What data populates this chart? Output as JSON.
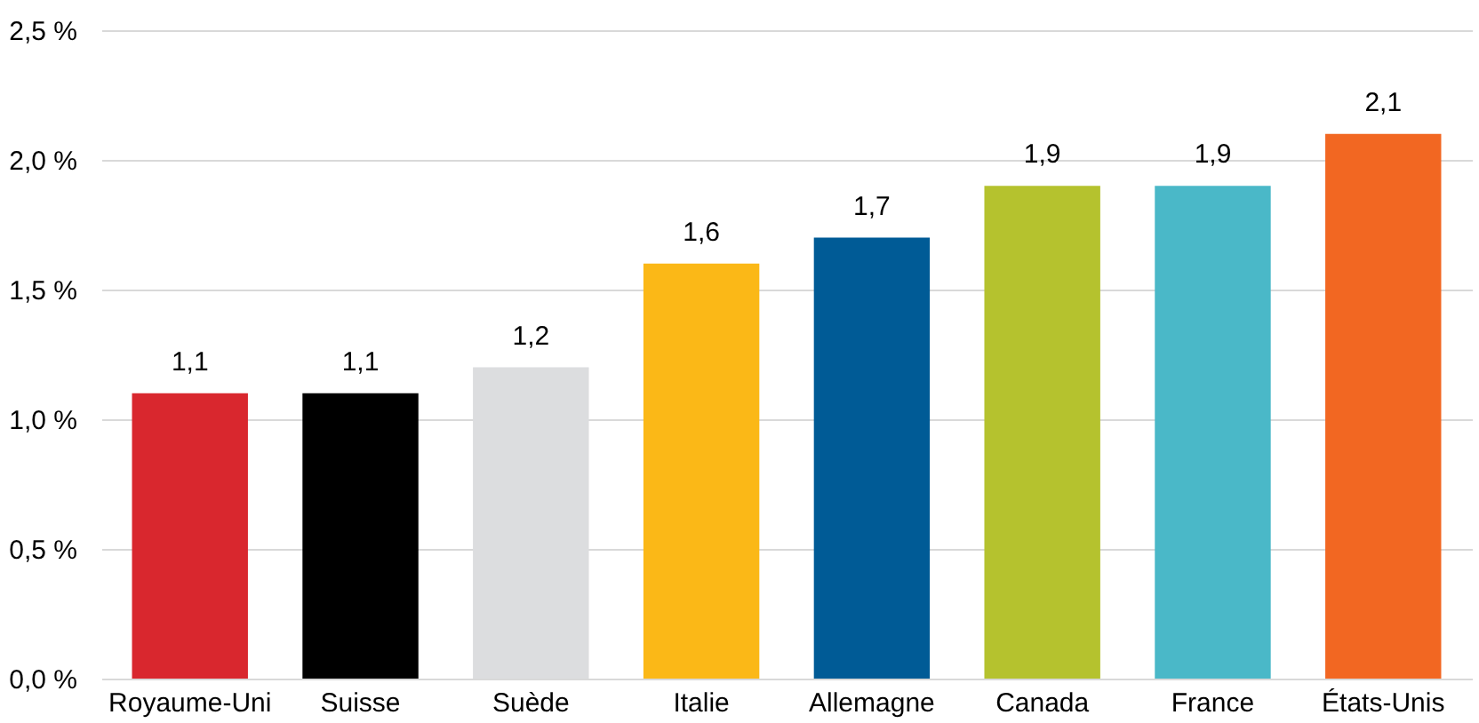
{
  "chart_data": {
    "type": "bar",
    "categories": [
      "Royaume-Uni",
      "Suisse",
      "Suède",
      "Italie",
      "Allemagne",
      "Canada",
      "France",
      "États-Unis"
    ],
    "values": [
      1.1,
      1.1,
      1.2,
      1.6,
      1.7,
      1.9,
      1.9,
      2.1
    ],
    "colors": [
      "#d9272e",
      "#000000",
      "#dcdddf",
      "#fbb817",
      "#005b96",
      "#b5c22e",
      "#4ab8c8",
      "#f26722"
    ],
    "value_labels": [
      "1,1",
      "1,1",
      "1,2",
      "1,6",
      "1,7",
      "1,9",
      "1,9",
      "2,1"
    ],
    "ylim": [
      0,
      2.5
    ],
    "yticks": [
      {
        "value": 0,
        "label": "0,0 %"
      },
      {
        "value": 0.5,
        "label": "0,5 %"
      },
      {
        "value": 1,
        "label": "1,0 %"
      },
      {
        "value": 1.5,
        "label": "1,5 %"
      },
      {
        "value": 2,
        "label": "2,0 %"
      },
      {
        "value": 2.5,
        "label": "2,5 %"
      }
    ],
    "grid": "y"
  }
}
